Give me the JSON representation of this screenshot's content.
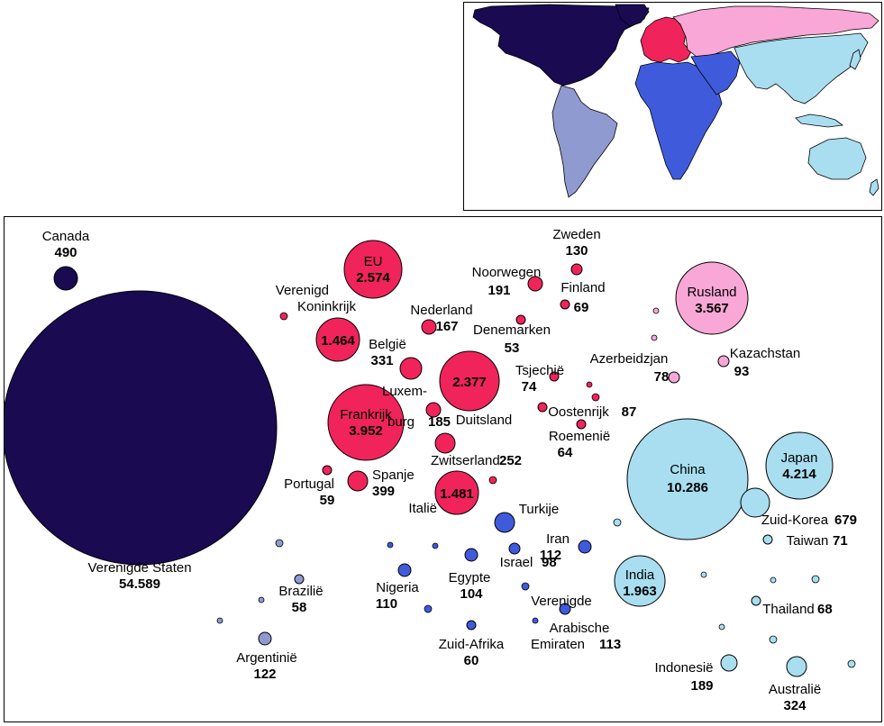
{
  "colors": {
    "north_america": "#1a0a52",
    "south_america": "#8f9bd0",
    "europe": "#f0245a",
    "russia_central_asia": "#f8a7d6",
    "africa_middle_east": "#3f5bdc",
    "asia_oceania": "#a8def0"
  },
  "chart_data": {
    "type": "bubble",
    "series": [
      {
        "name": "Canada",
        "label": "Canada",
        "value": 490,
        "value_label": "490",
        "region": "north_america"
      },
      {
        "name": "Verenigde Staten",
        "label": "Verenigde Staten",
        "value": 54589,
        "value_label": "54.589",
        "region": "north_america"
      },
      {
        "name": "EU",
        "label": "EU",
        "value": 2574,
        "value_label": "2.574",
        "region": "europe"
      },
      {
        "name": "Verenigd Koninkrijk",
        "label1": "Verenigd",
        "label2": "Koninkrijk",
        "value": 1464,
        "value_label": "1.464",
        "region": "europe"
      },
      {
        "name": "Frankrijk",
        "label": "Frankrijk",
        "value": 3952,
        "value_label": "3.952",
        "region": "europe"
      },
      {
        "name": "Duitsland",
        "label": "Duitsland",
        "value": 2377,
        "value_label": "2.377",
        "region": "europe"
      },
      {
        "name": "Italië",
        "label": "Italië",
        "value": 1481,
        "value_label": "1.481",
        "region": "europe"
      },
      {
        "name": "België",
        "label": "België",
        "value": 331,
        "value_label": "331",
        "region": "europe"
      },
      {
        "name": "Nederland",
        "label": "Nederland",
        "value": 167,
        "value_label": "167",
        "region": "europe"
      },
      {
        "name": "Luxemburg",
        "label1": "Luxem-",
        "label2": "burg",
        "value": 185,
        "value_label": "185",
        "region": "europe"
      },
      {
        "name": "Zwitserland",
        "label": "Zwitserland",
        "value": 252,
        "value_label": "252",
        "region": "europe"
      },
      {
        "name": "Spanje",
        "label": "Spanje",
        "value": 399,
        "value_label": "399",
        "region": "europe"
      },
      {
        "name": "Portugal",
        "label": "Portugal",
        "value": 59,
        "value_label": "59",
        "region": "europe"
      },
      {
        "name": "Noorwegen",
        "label": "Noorwegen",
        "value": 191,
        "value_label": "191",
        "region": "europe"
      },
      {
        "name": "Zweden",
        "label": "Zweden",
        "value": 130,
        "value_label": "130",
        "region": "europe"
      },
      {
        "name": "Finland",
        "label": "Finland",
        "value": 69,
        "value_label": "69",
        "region": "europe"
      },
      {
        "name": "Denemarken",
        "label": "Denemarken",
        "value": 53,
        "value_label": "53",
        "region": "europe"
      },
      {
        "name": "Tsjechië",
        "label": "Tsjechië",
        "value": 74,
        "value_label": "74",
        "region": "europe"
      },
      {
        "name": "Oostenrijk",
        "label": "Oostenrijk",
        "value": 87,
        "value_label": "87",
        "region": "europe"
      },
      {
        "name": "Roemenië",
        "label": "Roemenië",
        "value": 64,
        "value_label": "64",
        "region": "europe"
      },
      {
        "name": "Rusland",
        "label": "Rusland",
        "value": 3567,
        "value_label": "3.567",
        "region": "russia_central_asia"
      },
      {
        "name": "Azerbeidzjan",
        "label": "Azerbeidzjan",
        "value": 78,
        "value_label": "78",
        "region": "russia_central_asia"
      },
      {
        "name": "Kazachstan",
        "label": "Kazachstan",
        "value": 93,
        "value_label": "93",
        "region": "russia_central_asia"
      },
      {
        "name": "China",
        "label": "China",
        "value": 10286,
        "value_label": "10.286",
        "region": "asia_oceania"
      },
      {
        "name": "Japan",
        "label": "Japan",
        "value": 4214,
        "value_label": "4.214",
        "region": "asia_oceania"
      },
      {
        "name": "Zuid-Korea",
        "label": "Zuid-Korea",
        "value": 679,
        "value_label": "679",
        "region": "asia_oceania"
      },
      {
        "name": "Taiwan",
        "label": "Taiwan",
        "value": 71,
        "value_label": "71",
        "region": "asia_oceania"
      },
      {
        "name": "India",
        "label": "India",
        "value": 1963,
        "value_label": "1.963",
        "region": "asia_oceania"
      },
      {
        "name": "Thailand",
        "label": "Thailand",
        "value": 68,
        "value_label": "68",
        "region": "asia_oceania"
      },
      {
        "name": "Indonesië",
        "label": "Indonesië",
        "value": 189,
        "value_label": "189",
        "region": "asia_oceania"
      },
      {
        "name": "Australië",
        "label": "Australië",
        "value": 324,
        "value_label": "324",
        "region": "asia_oceania"
      },
      {
        "name": "Turkije",
        "label": "Turkije",
        "value": null,
        "value_label": "",
        "region": "africa_middle_east"
      },
      {
        "name": "Iran",
        "label": "Iran",
        "value": 112,
        "value_label": "112",
        "region": "africa_middle_east"
      },
      {
        "name": "Israel",
        "label": "Israel",
        "value": 98,
        "value_label": "98",
        "region": "africa_middle_east"
      },
      {
        "name": "Egypte",
        "label": "Egypte",
        "value": 104,
        "value_label": "104",
        "region": "africa_middle_east"
      },
      {
        "name": "Nigeria",
        "label": "Nigeria",
        "value": 110,
        "value_label": "110",
        "region": "africa_middle_east"
      },
      {
        "name": "Zuid-Afrika",
        "label": "Zuid-Afrika",
        "value": 60,
        "value_label": "60",
        "region": "africa_middle_east"
      },
      {
        "name": "Verenigde Arabische Emiraten",
        "label1": "Verenigde",
        "label2": "Arabische",
        "label3": "Emiraten",
        "value": 113,
        "value_label": "113",
        "region": "africa_middle_east"
      },
      {
        "name": "Brazilië",
        "label": "Brazilië",
        "value": 58,
        "value_label": "58",
        "region": "south_america"
      },
      {
        "name": "Argentinië",
        "label": "Argentinië",
        "value": 122,
        "value_label": "122",
        "region": "south_america"
      }
    ]
  }
}
